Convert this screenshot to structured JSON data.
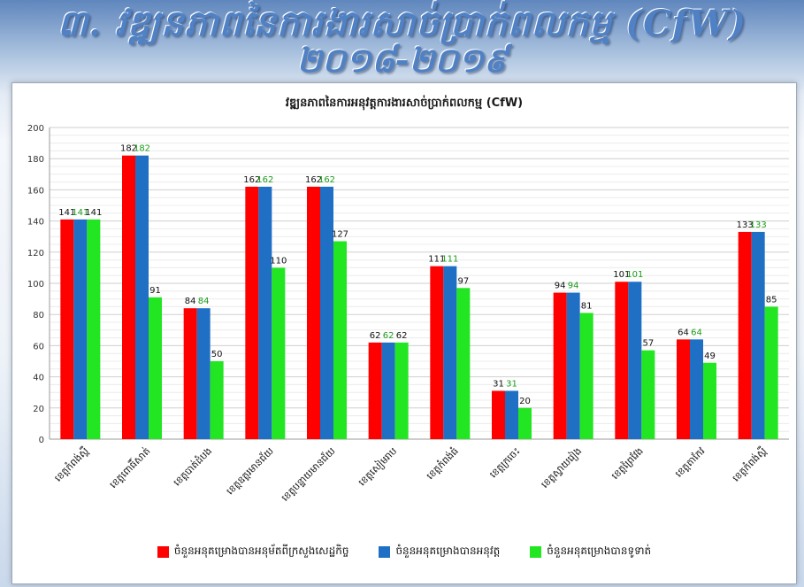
{
  "page": {
    "title_line1": "៣. វឌ្ឍនភាពនៃការងារសាច់ប្រាក់ពលកម្ម (CfW)",
    "title_line2": "២០១៨-២០១៩"
  },
  "colors": {
    "series": [
      "#ff0000",
      "#1f6fc5",
      "#22e622"
    ],
    "grid": "#d9d9d9",
    "axis": "#9a9a9a"
  },
  "chart_data": {
    "type": "bar",
    "title": "វឌ្ឍនភាពនៃការអនុវត្តការងារសាច់ប្រាក់ពលកម្ម (CfW)",
    "xlabel": "",
    "ylabel": "",
    "ylim": [
      0,
      200
    ],
    "yticks": [
      "0",
      "20",
      "40",
      "60",
      "80",
      "100",
      "120",
      "140",
      "160",
      "180",
      "200"
    ],
    "grid": true,
    "legend_position": "bottom",
    "categories": [
      "ខេត្តកំពង់ស្ពឺ",
      "ខេត្តពោធិ៍សាត់",
      "ខេត្តបាត់ដំបង",
      "ខេត្តឧត្តរមានជ័យ",
      "ខេត្តបន្ទាយមានជ័យ",
      "ខេត្តសៀមរាប",
      "ខេត្តកំពង់ធំ",
      "ខេត្តក្រចេះ",
      "ខេត្តស្វាយរៀង",
      "ខេត្តព្រៃវែង",
      "ខេត្តតាកែវ",
      "ខេត្តកំពង់ស្ពឺ"
    ],
    "series": [
      {
        "name": "ចំនួនអនុគម្រោងបានអនុម័តពីក្រសួងសេដ្ឋកិច្ច",
        "values": [
          141,
          182,
          84,
          162,
          162,
          62,
          111,
          31,
          94,
          101,
          64,
          133
        ]
      },
      {
        "name": "ចំនួនអនុគម្រោងបានអនុវត្ត",
        "values": [
          141,
          182,
          84,
          162,
          162,
          62,
          111,
          31,
          94,
          101,
          64,
          133
        ]
      },
      {
        "name": "ចំនួនអនុគម្រោងបានទូទាត់",
        "values": [
          141,
          91,
          50,
          110,
          127,
          62,
          97,
          20,
          81,
          57,
          49,
          85
        ]
      }
    ],
    "label_colors": [
      "#111111",
      "#1a9c1a",
      "#111111"
    ]
  }
}
